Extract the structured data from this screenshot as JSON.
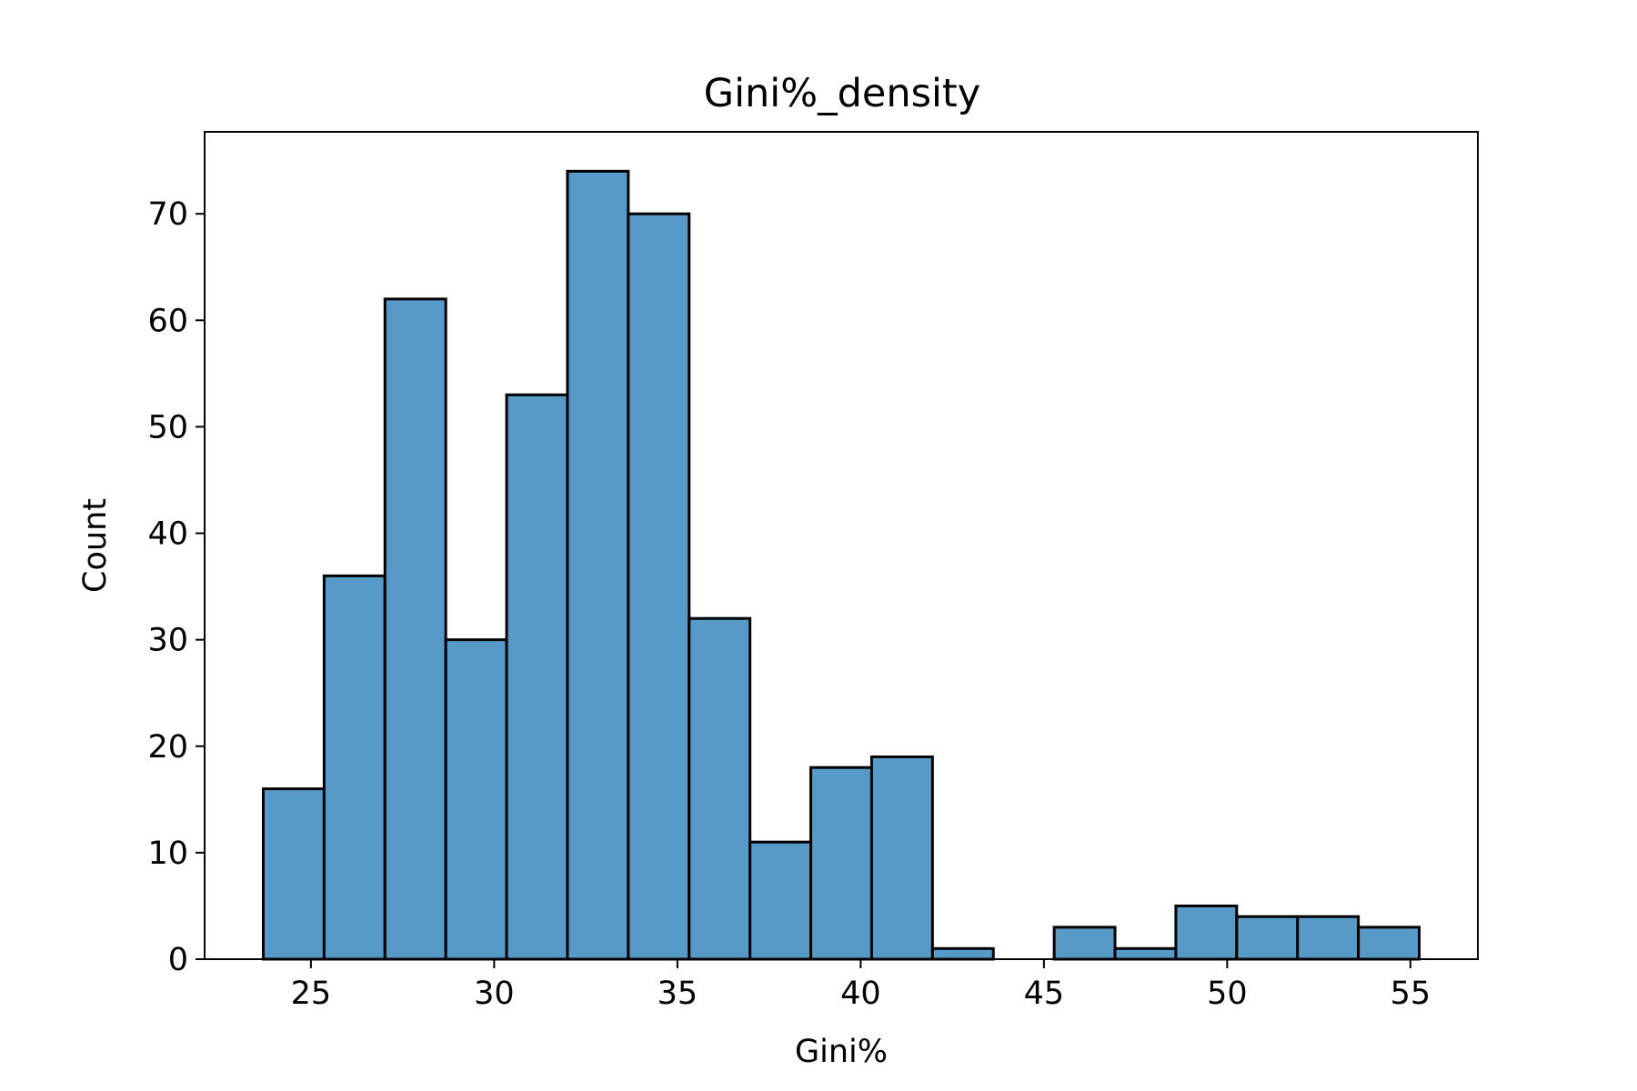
{
  "chart_data": {
    "type": "bar",
    "title": "Gini%_density",
    "xlabel": "Gini%",
    "ylabel": "Count",
    "bin_edges": [
      23.7,
      25.36,
      27.02,
      28.68,
      30.34,
      32.0,
      33.66,
      35.32,
      36.98,
      38.64,
      40.3,
      41.96,
      43.62,
      45.28,
      46.94,
      48.6,
      50.26,
      51.92,
      53.58,
      55.24
    ],
    "values": [
      16,
      36,
      62,
      30,
      53,
      74,
      70,
      32,
      11,
      18,
      19,
      1,
      0,
      3,
      1,
      5,
      4,
      4,
      3
    ],
    "xlim": [
      22.1,
      56.84
    ],
    "ylim": [
      0,
      77.7
    ],
    "xticks": [
      25,
      30,
      35,
      40,
      45,
      50,
      55
    ],
    "yticks": [
      0,
      10,
      20,
      30,
      40,
      50,
      60,
      70
    ],
    "bar_color": "#5799c7",
    "edge_color": "#000000",
    "grid": false,
    "legend": false
  }
}
